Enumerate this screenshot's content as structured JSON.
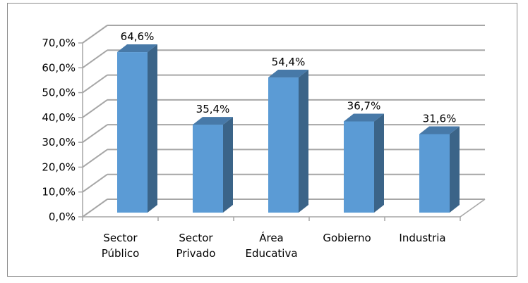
{
  "chart_data": {
    "type": "bar",
    "style": "3d-column",
    "title": "",
    "xlabel": "",
    "ylabel": "",
    "categories": [
      [
        "Sector",
        "Público"
      ],
      [
        "Sector",
        "Privado"
      ],
      [
        "Área",
        "Educativa"
      ],
      [
        "Gobierno"
      ],
      [
        "Industria"
      ]
    ],
    "category_names": [
      "Sector Público",
      "Sector Privado",
      "Área Educativa",
      "Gobierno",
      "Industria"
    ],
    "values": [
      64.6,
      35.4,
      54.4,
      36.7,
      31.6
    ],
    "data_labels": [
      "64,6%",
      "35,4%",
      "54,4%",
      "36,7%",
      "31,6%"
    ],
    "ylim": [
      0,
      70
    ],
    "yticks": [
      0,
      10,
      20,
      30,
      40,
      50,
      60,
      70
    ],
    "ytick_labels": [
      "0,0%",
      "10,0%",
      "20,0%",
      "30,0%",
      "40,0%",
      "50,0%",
      "60,0%",
      "70,0%"
    ],
    "grid": true,
    "legend": null,
    "colors": {
      "bar_front": "#5b9bd5",
      "bar_side": "#3b6488",
      "bar_top": "#4779a8",
      "grid": "#a6a6a6",
      "frame": "#8c8c8c"
    }
  }
}
